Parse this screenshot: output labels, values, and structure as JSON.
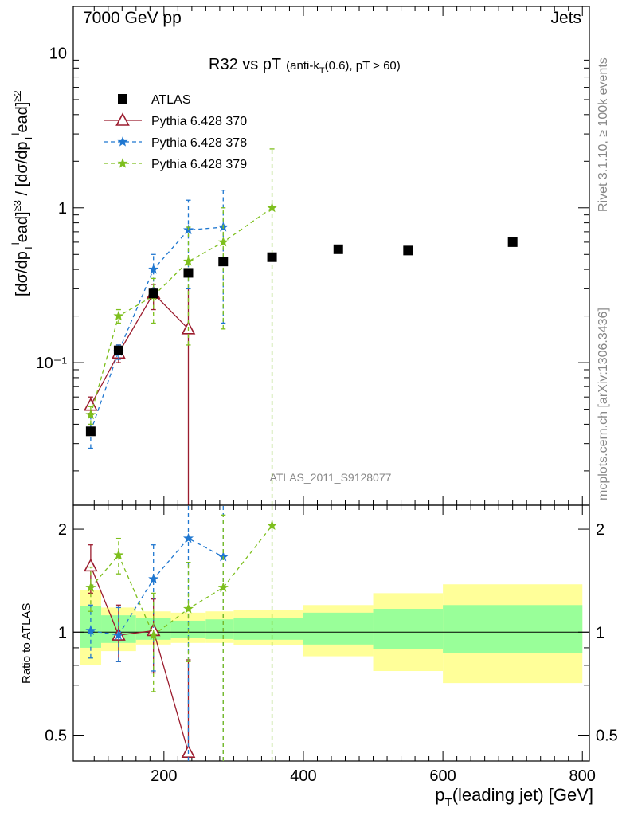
{
  "header": {
    "left": "7000 GeV pp",
    "right": "Jets",
    "rivet": "Rivet 3.1.10, ≥ 100k events",
    "mcplots": "mcplots.cern.ch [arXiv:1306.3436]"
  },
  "chart_data": [
    {
      "type": "scatter",
      "panel": "main",
      "title": "R32 vs pT",
      "title_sub": "(anti-k",
      "title_sub_T": "T",
      "title_sub_tail": "(0.6), pT > 60)",
      "watermark": "ATLAS_2011_S9128077",
      "ylabel": "[dσ/dpₗead≥3 / dσ/dpₗead≥2]",
      "ylog": true,
      "xlim": [
        70,
        810
      ],
      "ylim": [
        0.012,
        20
      ],
      "ytick_labels": [
        "10⁻¹",
        "1",
        "10"
      ],
      "ytick_values": [
        0.1,
        1,
        10
      ],
      "legend": {
        "placement": "top-left",
        "entries": [
          "ATLAS",
          "Pythia 6.428 370",
          "Pythia 6.428 378",
          "Pythia 6.428 379"
        ]
      },
      "series": [
        {
          "name": "ATLAS",
          "color": "#000000",
          "marker": "square",
          "x": [
            95,
            135,
            185,
            235,
            285,
            355,
            450,
            550,
            700
          ],
          "y": [
            0.036,
            0.12,
            0.28,
            0.38,
            0.45,
            0.48,
            0.54,
            0.53,
            0.6
          ]
        },
        {
          "name": "Pythia 6.428 370",
          "color": "#9b1c2e",
          "marker": "triangle",
          "x": [
            95,
            135,
            185,
            235
          ],
          "y": [
            0.053,
            0.115,
            0.28,
            0.165
          ],
          "ylo": [
            0.047,
            0.1,
            0.22,
            0.001
          ],
          "yhi": [
            0.06,
            0.13,
            0.32,
            0.3
          ]
        },
        {
          "name": "Pythia 6.428 378",
          "color": "#1f77d0",
          "marker": "star",
          "x": [
            95,
            135,
            185,
            235,
            285
          ],
          "y": [
            0.036,
            0.118,
            0.4,
            0.72,
            0.75
          ],
          "ylo": [
            0.028,
            0.105,
            0.3,
            0.3,
            0.18
          ],
          "yhi": [
            0.045,
            0.13,
            0.5,
            1.12,
            1.3
          ]
        },
        {
          "name": "Pythia 6.428 379",
          "color": "#7dbf1d",
          "marker": "star",
          "x": [
            95,
            135,
            185,
            235,
            285,
            355
          ],
          "y": [
            0.046,
            0.2,
            0.27,
            0.45,
            0.6,
            1.0
          ],
          "ylo": [
            0.04,
            0.18,
            0.18,
            0.13,
            0.165,
            0.001
          ],
          "yhi": [
            0.052,
            0.22,
            0.35,
            0.75,
            1.0,
            2.4
          ]
        }
      ]
    },
    {
      "type": "scatter",
      "panel": "ratio",
      "ylabel": "Ratio to ATLAS",
      "xlabel": "p",
      "xlabel_sub": "T",
      "xlabel_tail": "(leading jet) [GeV]",
      "ylog": true,
      "xlim": [
        70,
        810
      ],
      "ylim": [
        0.42,
        2.35
      ],
      "xtick_labels": [
        "200",
        "400",
        "600",
        "800"
      ],
      "xtick_values": [
        200,
        400,
        600,
        800
      ],
      "ytick_labels": [
        "0.5",
        "1",
        "2"
      ],
      "ytick_values": [
        0.5,
        1,
        2
      ],
      "bands": {
        "x_edges": [
          80,
          110,
          160,
          210,
          260,
          300,
          400,
          500,
          600,
          800
        ],
        "inner_lo": [
          0.9,
          0.93,
          0.95,
          0.96,
          0.955,
          0.95,
          0.92,
          0.89,
          0.87
        ],
        "inner_hi": [
          1.19,
          1.12,
          1.1,
          1.08,
          1.09,
          1.1,
          1.14,
          1.17,
          1.2
        ],
        "outer_lo": [
          0.8,
          0.88,
          0.92,
          0.93,
          0.93,
          0.915,
          0.85,
          0.77,
          0.71
        ],
        "outer_hi": [
          1.33,
          1.18,
          1.15,
          1.14,
          1.15,
          1.16,
          1.2,
          1.3,
          1.38
        ],
        "inner_color": "#99ff99",
        "outer_color": "#ffff99"
      },
      "series": [
        {
          "name": "Pythia 6.428 370",
          "color": "#9b1c2e",
          "marker": "triangle",
          "x": [
            95,
            135,
            185,
            235
          ],
          "y": [
            1.56,
            0.98,
            1.01,
            0.445
          ],
          "ylo": [
            1.3,
            0.82,
            0.76,
            0.001
          ],
          "yhi": [
            1.8,
            1.2,
            1.25,
            0.83
          ]
        },
        {
          "name": "Pythia 6.428 378",
          "color": "#1f77d0",
          "marker": "star",
          "x": [
            95,
            135,
            185,
            235,
            285
          ],
          "y": [
            1.01,
            0.98,
            1.43,
            1.88,
            1.66
          ],
          "ylo": [
            0.84,
            0.82,
            0.77,
            0.001,
            0.001
          ],
          "yhi": [
            1.2,
            1.18,
            1.8,
            2.35,
            2.35
          ]
        },
        {
          "name": "Pythia 6.428 379",
          "color": "#7dbf1d",
          "marker": "star",
          "x": [
            95,
            135,
            185,
            235,
            285,
            355
          ],
          "y": [
            1.35,
            1.68,
            0.98,
            1.17,
            1.35,
            2.05
          ],
          "ylo": [
            1.15,
            1.48,
            0.67,
            0.82,
            0.001,
            0.001
          ],
          "yhi": [
            1.55,
            1.88,
            1.3,
            1.6,
            2.2,
            2.35
          ]
        }
      ]
    }
  ]
}
